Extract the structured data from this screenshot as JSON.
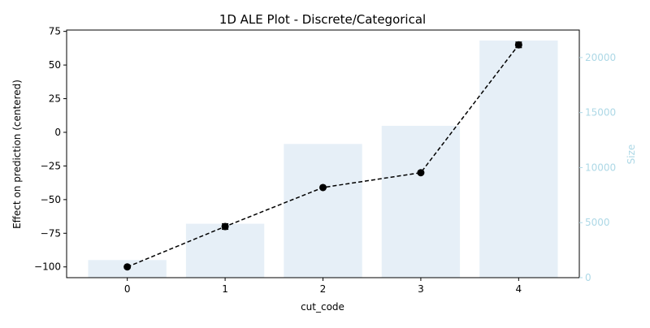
{
  "chart_data": {
    "type": "line",
    "title": "1D ALE Plot - Discrete/Categorical",
    "xlabel": "cut_code",
    "ylabel": "Effect on prediction (centered)",
    "y2label": "Size",
    "categories": [
      "0",
      "1",
      "2",
      "3",
      "4"
    ],
    "x": [
      0,
      1,
      2,
      3,
      4
    ],
    "xlim": [
      -0.62,
      4.62
    ],
    "xticks": [
      "0",
      "1",
      "2",
      "3",
      "4"
    ],
    "ylim": [
      -108,
      76
    ],
    "yticks": [
      "75",
      "50",
      "25",
      "0",
      "−25",
      "−50",
      "−75",
      "−100"
    ],
    "ytick_values": [
      75,
      50,
      25,
      0,
      -25,
      -50,
      -75,
      -100
    ],
    "y2lim": [
      0,
      22500
    ],
    "y2ticks": [
      "0",
      "5000",
      "10000",
      "15000",
      "20000"
    ],
    "y2tick_values": [
      0,
      5000,
      10000,
      15000,
      20000
    ],
    "series": [
      {
        "type": "line",
        "axis": "left",
        "style": "dashed",
        "marker": "circle",
        "values": [
          -100,
          -70,
          -41,
          -30,
          65
        ],
        "errors": [
          0,
          2,
          0,
          0,
          2
        ]
      },
      {
        "type": "bar",
        "axis": "right",
        "values": [
          1600,
          4900,
          12150,
          13800,
          21550
        ]
      }
    ],
    "grid": false,
    "colors": {
      "line": "#000000",
      "bars": "#e6eff7",
      "right_axis": "#add8e6",
      "text": "#000000"
    }
  }
}
